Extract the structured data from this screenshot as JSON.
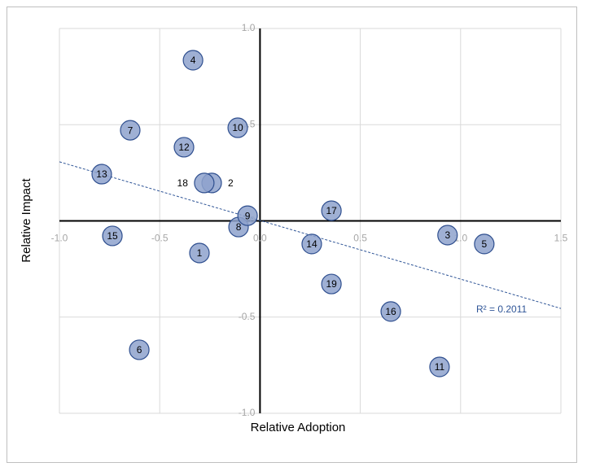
{
  "chart_data": {
    "type": "scatter",
    "x_label": "Relative Adoption",
    "y_label": "Relative Impact",
    "xlim": [
      -1.0,
      1.5
    ],
    "ylim": [
      -1.0,
      1.0
    ],
    "xticks": [
      {
        "value": -1.0,
        "label": "-1.0"
      },
      -0.5,
      {
        "value": 0,
        "label": "0.0"
      },
      0.5,
      {
        "value": 1.0,
        "label": "1.0"
      },
      1.5
    ],
    "yticks": [
      {
        "value": 1.0,
        "label": "1.0"
      },
      0.5,
      {
        "value": 0,
        "label": "0.0"
      },
      -0.5,
      {
        "value": -1.0,
        "label": "-1.0"
      }
    ],
    "grid": true,
    "color": "#8ea2cc",
    "labels": [
      "1",
      "2",
      "3",
      "4",
      "5",
      "6",
      "7",
      "8",
      "9",
      "10",
      "11",
      "12",
      "13",
      "14",
      "15",
      "16",
      "17",
      "18",
      "19"
    ],
    "x": [
      -0.302,
      -0.241,
      0.935,
      -0.334,
      1.118,
      -0.602,
      -0.647,
      -0.107,
      -0.062,
      -0.111,
      0.895,
      -0.379,
      -0.789,
      0.258,
      -0.736,
      0.652,
      0.356,
      -0.278,
      0.356
    ],
    "y": [
      -0.167,
      0.197,
      -0.074,
      0.835,
      -0.12,
      -0.67,
      0.471,
      -0.032,
      0.027,
      0.484,
      -0.759,
      0.383,
      0.243,
      -0.12,
      -0.078,
      -0.471,
      0.053,
      0.197,
      -0.328
    ],
    "trendline": {
      "x": [
        -1.0,
        1.5
      ],
      "y": [
        0.307,
        -0.455
      ],
      "label": "R² = 0.2011",
      "color": "#2f5597"
    }
  }
}
